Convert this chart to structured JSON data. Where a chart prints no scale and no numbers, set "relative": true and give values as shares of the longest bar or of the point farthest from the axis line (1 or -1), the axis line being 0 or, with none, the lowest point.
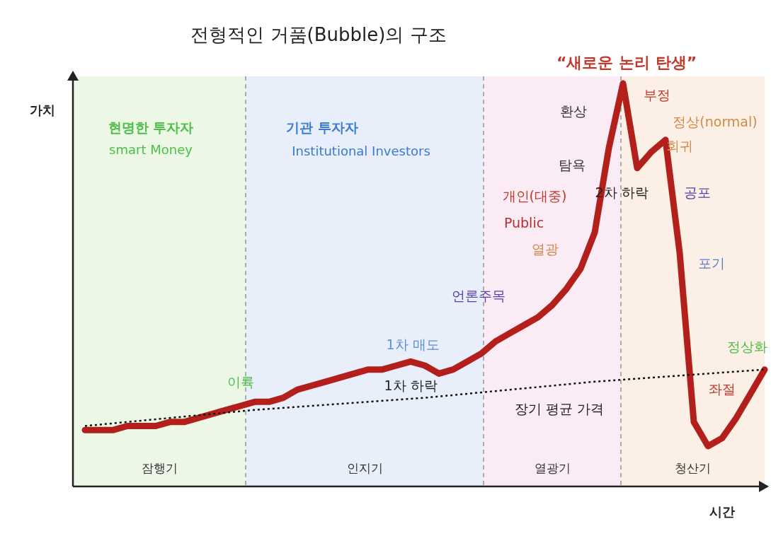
{
  "chart_data": {
    "type": "line",
    "title": "전형적인 거품(Bubble)의 구조",
    "xlabel": "시간",
    "ylabel": "가치",
    "relative": true,
    "categories": [
      null,
      null,
      null,
      null,
      null,
      null,
      null,
      null,
      null,
      null,
      null,
      null,
      null,
      null,
      null,
      null,
      null,
      null,
      null,
      null,
      null,
      null,
      null,
      null,
      null,
      null,
      null,
      null,
      null,
      null,
      null,
      null,
      null,
      null,
      null,
      null,
      null,
      null,
      null,
      null,
      null,
      null,
      null,
      null,
      null,
      null,
      null,
      null,
      null
    ],
    "series": [
      {
        "color": "#b3201c",
        "values": [
          0.14,
          0.14,
          0.14,
          0.15,
          0.15,
          0.15,
          0.16,
          0.16,
          0.17,
          0.18,
          0.19,
          0.2,
          0.21,
          0.21,
          0.22,
          0.24,
          0.25,
          0.26,
          0.27,
          0.28,
          0.29,
          0.29,
          0.3,
          0.31,
          0.3,
          0.28,
          0.29,
          0.31,
          0.33,
          0.36,
          0.38,
          0.4,
          0.42,
          0.45,
          0.49,
          0.54,
          0.63,
          0.84,
          1,
          0.79,
          0.83,
          0.86,
          0.58,
          0.16,
          0.1,
          0.12,
          0.17,
          0.23,
          0.29
        ]
      },
      {
        "color": "#111111",
        "line_style": "dotted",
        "values": [
          0.15,
          null,
          null,
          null,
          null,
          null,
          null,
          null,
          null,
          null,
          null,
          null,
          0.19,
          null,
          null,
          null,
          null,
          null,
          null,
          null,
          null,
          null,
          null,
          null,
          0.22,
          null,
          null,
          null,
          null,
          null,
          null,
          null,
          null,
          null,
          null,
          null,
          0.26,
          null,
          null,
          null,
          null,
          null,
          null,
          null,
          null,
          null,
          null,
          null,
          0.29
        ]
      }
    ],
    "annotations": [
      "“새로운 논리 탄생”",
      "현명한 투자자",
      "smart Money",
      "기관 투자자",
      "Institutional Investors",
      "이륙",
      "1차 매도",
      "1차 하락",
      "언론주목",
      "개인(대중)",
      "Public",
      "열광",
      "탐욕",
      "환상",
      "부정",
      "정상(normal)",
      "회귀",
      "2차 하락",
      "공포",
      "포기",
      "정상화",
      "좌절",
      "장기 평균 가격",
      "잠행기",
      "인지기",
      "열광기",
      "청산기"
    ]
  }
}
